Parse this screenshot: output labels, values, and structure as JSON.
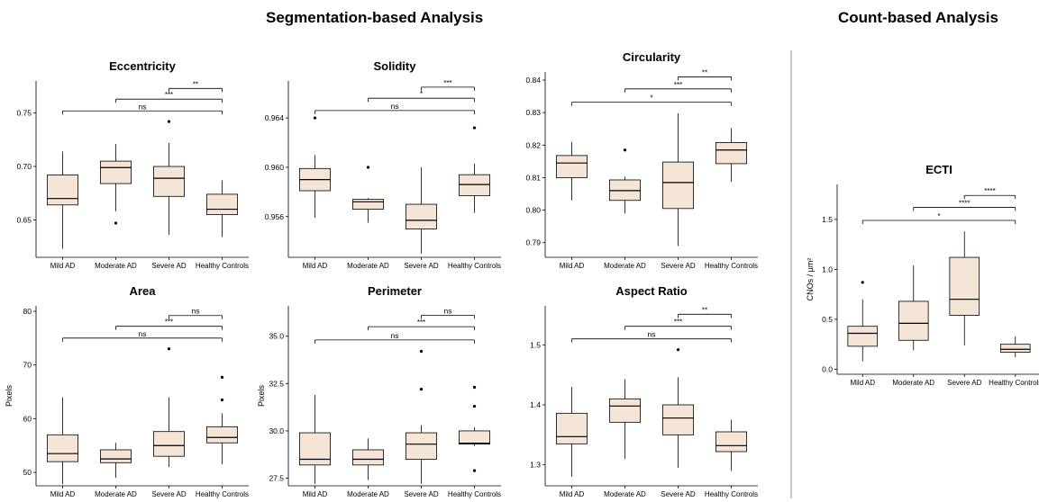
{
  "sections": {
    "left": "Segmentation-based Analysis",
    "right": "Count-based Analysis"
  },
  "colors": {
    "box_fill": "#f5e5d7",
    "box_stroke": "#000000",
    "divider": "#c8c8c8"
  },
  "chart_data": [
    {
      "id": "eccentricity",
      "type": "box",
      "title": "Eccentricity",
      "ylabel": "",
      "categories": [
        "Mild AD",
        "Moderate AD",
        "Severe AD",
        "Healthy Controls"
      ],
      "ylim": [
        0.615,
        0.78
      ],
      "yticks": [
        0.65,
        0.7,
        0.75
      ],
      "ytick_labels": [
        "0.65",
        "0.70",
        "0.75"
      ],
      "boxes": [
        {
          "whisker_low": 0.623,
          "q1": 0.664,
          "median": 0.67,
          "q3": 0.692,
          "whisker_high": 0.714,
          "outliers": []
        },
        {
          "whisker_low": 0.658,
          "q1": 0.684,
          "median": 0.699,
          "q3": 0.705,
          "whisker_high": 0.721,
          "outliers": [
            0.647
          ]
        },
        {
          "whisker_low": 0.636,
          "q1": 0.672,
          "median": 0.689,
          "q3": 0.7,
          "whisker_high": 0.722,
          "outliers": [
            0.742
          ]
        },
        {
          "whisker_low": 0.634,
          "q1": 0.655,
          "median": 0.66,
          "q3": 0.674,
          "whisker_high": 0.687,
          "outliers": []
        }
      ],
      "brackets": [
        {
          "from": 0,
          "to": 3,
          "y": 0.752,
          "label": "ns"
        },
        {
          "from": 1,
          "to": 3,
          "y": 0.763,
          "label": "***"
        },
        {
          "from": 2,
          "to": 3,
          "y": 0.773,
          "label": "**"
        }
      ]
    },
    {
      "id": "solidity",
      "type": "box",
      "title": "Solidity",
      "ylabel": "",
      "categories": [
        "Mild AD",
        "Moderate AD",
        "Severe AD",
        "Healthy Controls"
      ],
      "ylim": [
        0.9527,
        0.967
      ],
      "yticks": [
        0.956,
        0.96,
        0.964
      ],
      "ytick_labels": [
        "0.956",
        "0.960",
        "0.964"
      ],
      "boxes": [
        {
          "whisker_low": 0.9559,
          "q1": 0.9581,
          "median": 0.959,
          "q3": 0.9599,
          "whisker_high": 0.961,
          "outliers": [
            0.964
          ]
        },
        {
          "whisker_low": 0.9555,
          "q1": 0.9566,
          "median": 0.9572,
          "q3": 0.9574,
          "whisker_high": 0.9575,
          "outliers": [
            0.96
          ]
        },
        {
          "whisker_low": 0.953,
          "q1": 0.955,
          "median": 0.9557,
          "q3": 0.957,
          "whisker_high": 0.96,
          "outliers": []
        },
        {
          "whisker_low": 0.9563,
          "q1": 0.9577,
          "median": 0.9586,
          "q3": 0.9594,
          "whisker_high": 0.9603,
          "outliers": [
            0.9632
          ]
        }
      ],
      "brackets": [
        {
          "from": 0,
          "to": 3,
          "y": 0.9646,
          "label": "ns"
        },
        {
          "from": 1,
          "to": 3,
          "y": 0.9656,
          "label": "*"
        },
        {
          "from": 2,
          "to": 3,
          "y": 0.9665,
          "label": "***"
        }
      ]
    },
    {
      "id": "circularity",
      "type": "box",
      "title": "Circularity",
      "ylabel": "",
      "categories": [
        "Mild AD",
        "Moderate AD",
        "Severe AD",
        "Healthy Controls"
      ],
      "ylim": [
        0.7855,
        0.8425
      ],
      "yticks": [
        0.79,
        0.8,
        0.81,
        0.82,
        0.83,
        0.84
      ],
      "ytick_labels": [
        "0.79",
        "0.80",
        "0.81",
        "0.82",
        "0.83",
        "0.84"
      ],
      "boxes": [
        {
          "whisker_low": 0.803,
          "q1": 0.81,
          "median": 0.8145,
          "q3": 0.8168,
          "whisker_high": 0.821,
          "outliers": []
        },
        {
          "whisker_low": 0.799,
          "q1": 0.803,
          "median": 0.806,
          "q3": 0.8093,
          "whisker_high": 0.8103,
          "outliers": [
            0.8185
          ]
        },
        {
          "whisker_low": 0.789,
          "q1": 0.8005,
          "median": 0.8085,
          "q3": 0.8148,
          "whisker_high": 0.8298,
          "outliers": []
        },
        {
          "whisker_low": 0.8087,
          "q1": 0.8143,
          "median": 0.8185,
          "q3": 0.8208,
          "whisker_high": 0.8252,
          "outliers": []
        }
      ],
      "brackets": [
        {
          "from": 0,
          "to": 3,
          "y": 0.8332,
          "label": "*"
        },
        {
          "from": 1,
          "to": 3,
          "y": 0.8373,
          "label": "***"
        },
        {
          "from": 2,
          "to": 3,
          "y": 0.841,
          "label": "**"
        }
      ]
    },
    {
      "id": "area",
      "type": "box",
      "title": "Area",
      "ylabel": "Pixels",
      "categories": [
        "Mild AD",
        "Moderate AD",
        "Severe AD",
        "Healthy Controls"
      ],
      "ylim": [
        47.5,
        81.0
      ],
      "yticks": [
        50,
        60,
        70,
        80
      ],
      "ytick_labels": [
        "50",
        "60",
        "70",
        "80"
      ],
      "boxes": [
        {
          "whisker_low": 47.8,
          "q1": 52.0,
          "median": 53.5,
          "q3": 57.0,
          "whisker_high": 64.0,
          "outliers": []
        },
        {
          "whisker_low": 49.0,
          "q1": 51.8,
          "median": 52.5,
          "q3": 54.2,
          "whisker_high": 55.5,
          "outliers": []
        },
        {
          "whisker_low": 51.0,
          "q1": 53.0,
          "median": 55.0,
          "q3": 57.6,
          "whisker_high": 64.0,
          "outliers": [
            73.0
          ]
        },
        {
          "whisker_low": 51.5,
          "q1": 55.5,
          "median": 56.5,
          "q3": 58.5,
          "whisker_high": 61.0,
          "outliers": [
            63.5,
            67.7
          ]
        }
      ],
      "brackets": [
        {
          "from": 0,
          "to": 3,
          "y": 75.0,
          "label": "ns"
        },
        {
          "from": 1,
          "to": 3,
          "y": 77.2,
          "label": "***"
        },
        {
          "from": 2,
          "to": 3,
          "y": 79.2,
          "label": "ns"
        }
      ]
    },
    {
      "id": "perimeter",
      "type": "box",
      "title": "Perimeter",
      "ylabel": "Pixels",
      "categories": [
        "Mild AD",
        "Moderate AD",
        "Severe AD",
        "Healthy Controls"
      ],
      "ylim": [
        27.1,
        36.6
      ],
      "yticks": [
        27.5,
        30.0,
        32.5,
        35.0
      ],
      "ytick_labels": [
        "27.5",
        "30.0",
        "32.5",
        "35.0"
      ],
      "boxes": [
        {
          "whisker_low": 27.2,
          "q1": 28.2,
          "median": 28.5,
          "q3": 29.9,
          "whisker_high": 31.9,
          "outliers": []
        },
        {
          "whisker_low": 27.4,
          "q1": 28.2,
          "median": 28.5,
          "q3": 29.0,
          "whisker_high": 29.6,
          "outliers": []
        },
        {
          "whisker_low": 27.2,
          "q1": 28.5,
          "median": 29.3,
          "q3": 29.9,
          "whisker_high": 30.3,
          "outliers": [
            32.2,
            34.2
          ]
        },
        {
          "whisker_low": 29.2,
          "q1": 29.3,
          "median": 29.35,
          "q3": 30.0,
          "whisker_high": 30.2,
          "outliers": [
            27.9,
            31.3,
            32.3
          ]
        }
      ],
      "brackets": [
        {
          "from": 0,
          "to": 3,
          "y": 34.8,
          "label": "ns"
        },
        {
          "from": 1,
          "to": 3,
          "y": 35.5,
          "label": "***"
        },
        {
          "from": 2,
          "to": 3,
          "y": 36.1,
          "label": "ns"
        }
      ]
    },
    {
      "id": "aspect-ratio",
      "type": "box",
      "title": "Aspect Ratio",
      "ylabel": "",
      "categories": [
        "Mild AD",
        "Moderate AD",
        "Severe AD",
        "Healthy Controls"
      ],
      "ylim": [
        1.265,
        1.565
      ],
      "yticks": [
        1.3,
        1.4,
        1.5
      ],
      "ytick_labels": [
        "1.3",
        "1.4",
        "1.5"
      ],
      "boxes": [
        {
          "whisker_low": 1.28,
          "q1": 1.335,
          "median": 1.347,
          "q3": 1.386,
          "whisker_high": 1.43,
          "outliers": []
        },
        {
          "whisker_low": 1.31,
          "q1": 1.371,
          "median": 1.398,
          "q3": 1.41,
          "whisker_high": 1.443,
          "outliers": []
        },
        {
          "whisker_low": 1.295,
          "q1": 1.35,
          "median": 1.378,
          "q3": 1.4,
          "whisker_high": 1.446,
          "outliers": [
            1.492
          ]
        },
        {
          "whisker_low": 1.29,
          "q1": 1.322,
          "median": 1.332,
          "q3": 1.355,
          "whisker_high": 1.375,
          "outliers": []
        }
      ],
      "brackets": [
        {
          "from": 0,
          "to": 3,
          "y": 1.51,
          "label": "ns"
        },
        {
          "from": 1,
          "to": 3,
          "y": 1.531,
          "label": "***"
        },
        {
          "from": 2,
          "to": 3,
          "y": 1.551,
          "label": "**"
        }
      ]
    },
    {
      "id": "ecti",
      "type": "box",
      "title": "ECTI",
      "ylabel": "CNOs / μm²",
      "categories": [
        "Mild AD",
        "Moderate AD",
        "Severe AD",
        "Healthy Controls"
      ],
      "ylim": [
        -0.05,
        1.85
      ],
      "yticks": [
        0.0,
        0.5,
        1.0,
        1.5
      ],
      "ytick_labels": [
        "0.0",
        "0.5",
        "1.0",
        "1.5"
      ],
      "boxes": [
        {
          "whisker_low": 0.08,
          "q1": 0.23,
          "median": 0.36,
          "q3": 0.43,
          "whisker_high": 0.7,
          "outliers": [
            0.87
          ]
        },
        {
          "whisker_low": 0.19,
          "q1": 0.29,
          "median": 0.46,
          "q3": 0.68,
          "whisker_high": 1.04,
          "outliers": []
        },
        {
          "whisker_low": 0.24,
          "q1": 0.54,
          "median": 0.7,
          "q3": 1.12,
          "whisker_high": 1.38,
          "outliers": []
        },
        {
          "whisker_low": 0.12,
          "q1": 0.17,
          "median": 0.2,
          "q3": 0.25,
          "whisker_high": 0.33,
          "outliers": []
        }
      ],
      "brackets": [
        {
          "from": 0,
          "to": 3,
          "y": 1.49,
          "label": "*"
        },
        {
          "from": 1,
          "to": 3,
          "y": 1.62,
          "label": "****"
        },
        {
          "from": 2,
          "to": 3,
          "y": 1.74,
          "label": "****"
        }
      ]
    }
  ]
}
